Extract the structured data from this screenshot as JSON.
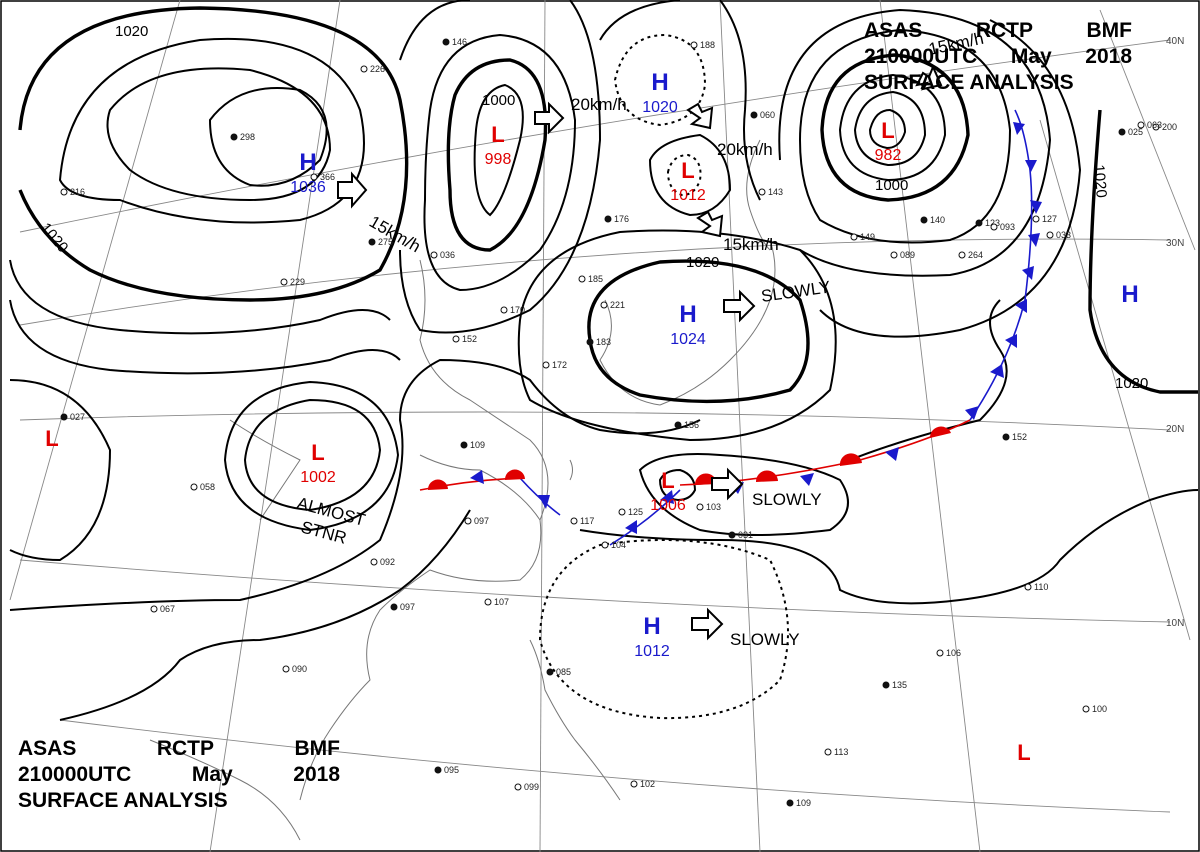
{
  "header": {
    "line1": [
      "ASAS",
      "RCTP",
      "BMF"
    ],
    "line2": [
      "210000UTC",
      "May",
      "2018"
    ],
    "line3": "SURFACE ANALYSIS"
  },
  "latitudes": [
    "40N",
    "30N",
    "20N",
    "10N"
  ],
  "pressure_centers": [
    {
      "type": "H",
      "value": "1036",
      "color": "#1a1acc"
    },
    {
      "type": "H",
      "value": "1020",
      "color": "#1a1acc"
    },
    {
      "type": "H",
      "value": "1024",
      "color": "#1a1acc"
    },
    {
      "type": "H",
      "value": "1012",
      "color": "#1a1acc"
    },
    {
      "type": "H",
      "value": "",
      "color": "#1a1acc"
    },
    {
      "type": "L",
      "value": "998",
      "color": "#e00000"
    },
    {
      "type": "L",
      "value": "1012",
      "color": "#e00000"
    },
    {
      "type": "L",
      "value": "982",
      "color": "#e00000"
    },
    {
      "type": "L",
      "value": "1002",
      "color": "#e00000"
    },
    {
      "type": "L",
      "value": "1006",
      "color": "#e00000"
    },
    {
      "type": "L",
      "value": "",
      "color": "#e00000"
    },
    {
      "type": "L",
      "value": "",
      "color": "#e00000"
    }
  ],
  "isobar_labels": [
    "1020",
    "1000",
    "1020",
    "1020",
    "1000",
    "1020",
    "1020"
  ],
  "motion_labels": [
    "20km/h",
    "15km/h",
    "20km/h",
    "15km/h",
    "15km/h",
    "SLOWLY",
    "SLOWLY",
    "SLOWLY",
    "ALMOST",
    "STNR"
  ],
  "station_samples": [
    "146",
    "226",
    "216",
    "298",
    "366",
    "036",
    "275",
    "229",
    "152",
    "176",
    "185",
    "221",
    "183",
    "170",
    "172",
    "109",
    "097",
    "058",
    "027",
    "067",
    "092",
    "097",
    "090",
    "107",
    "085",
    "117",
    "104",
    "031",
    "103",
    "125",
    "140",
    "089",
    "264",
    "123",
    "127",
    "200",
    "152",
    "110",
    "106",
    "135",
    "100",
    "113",
    "095",
    "099",
    "102",
    "109",
    "093",
    "033",
    "025",
    "063",
    "188",
    "060",
    "143",
    "149",
    "156"
  ],
  "colors": {
    "high": "#1a1acc",
    "low": "#e00000",
    "warm_front": "#e00000",
    "cold_front": "#1a1acc"
  }
}
